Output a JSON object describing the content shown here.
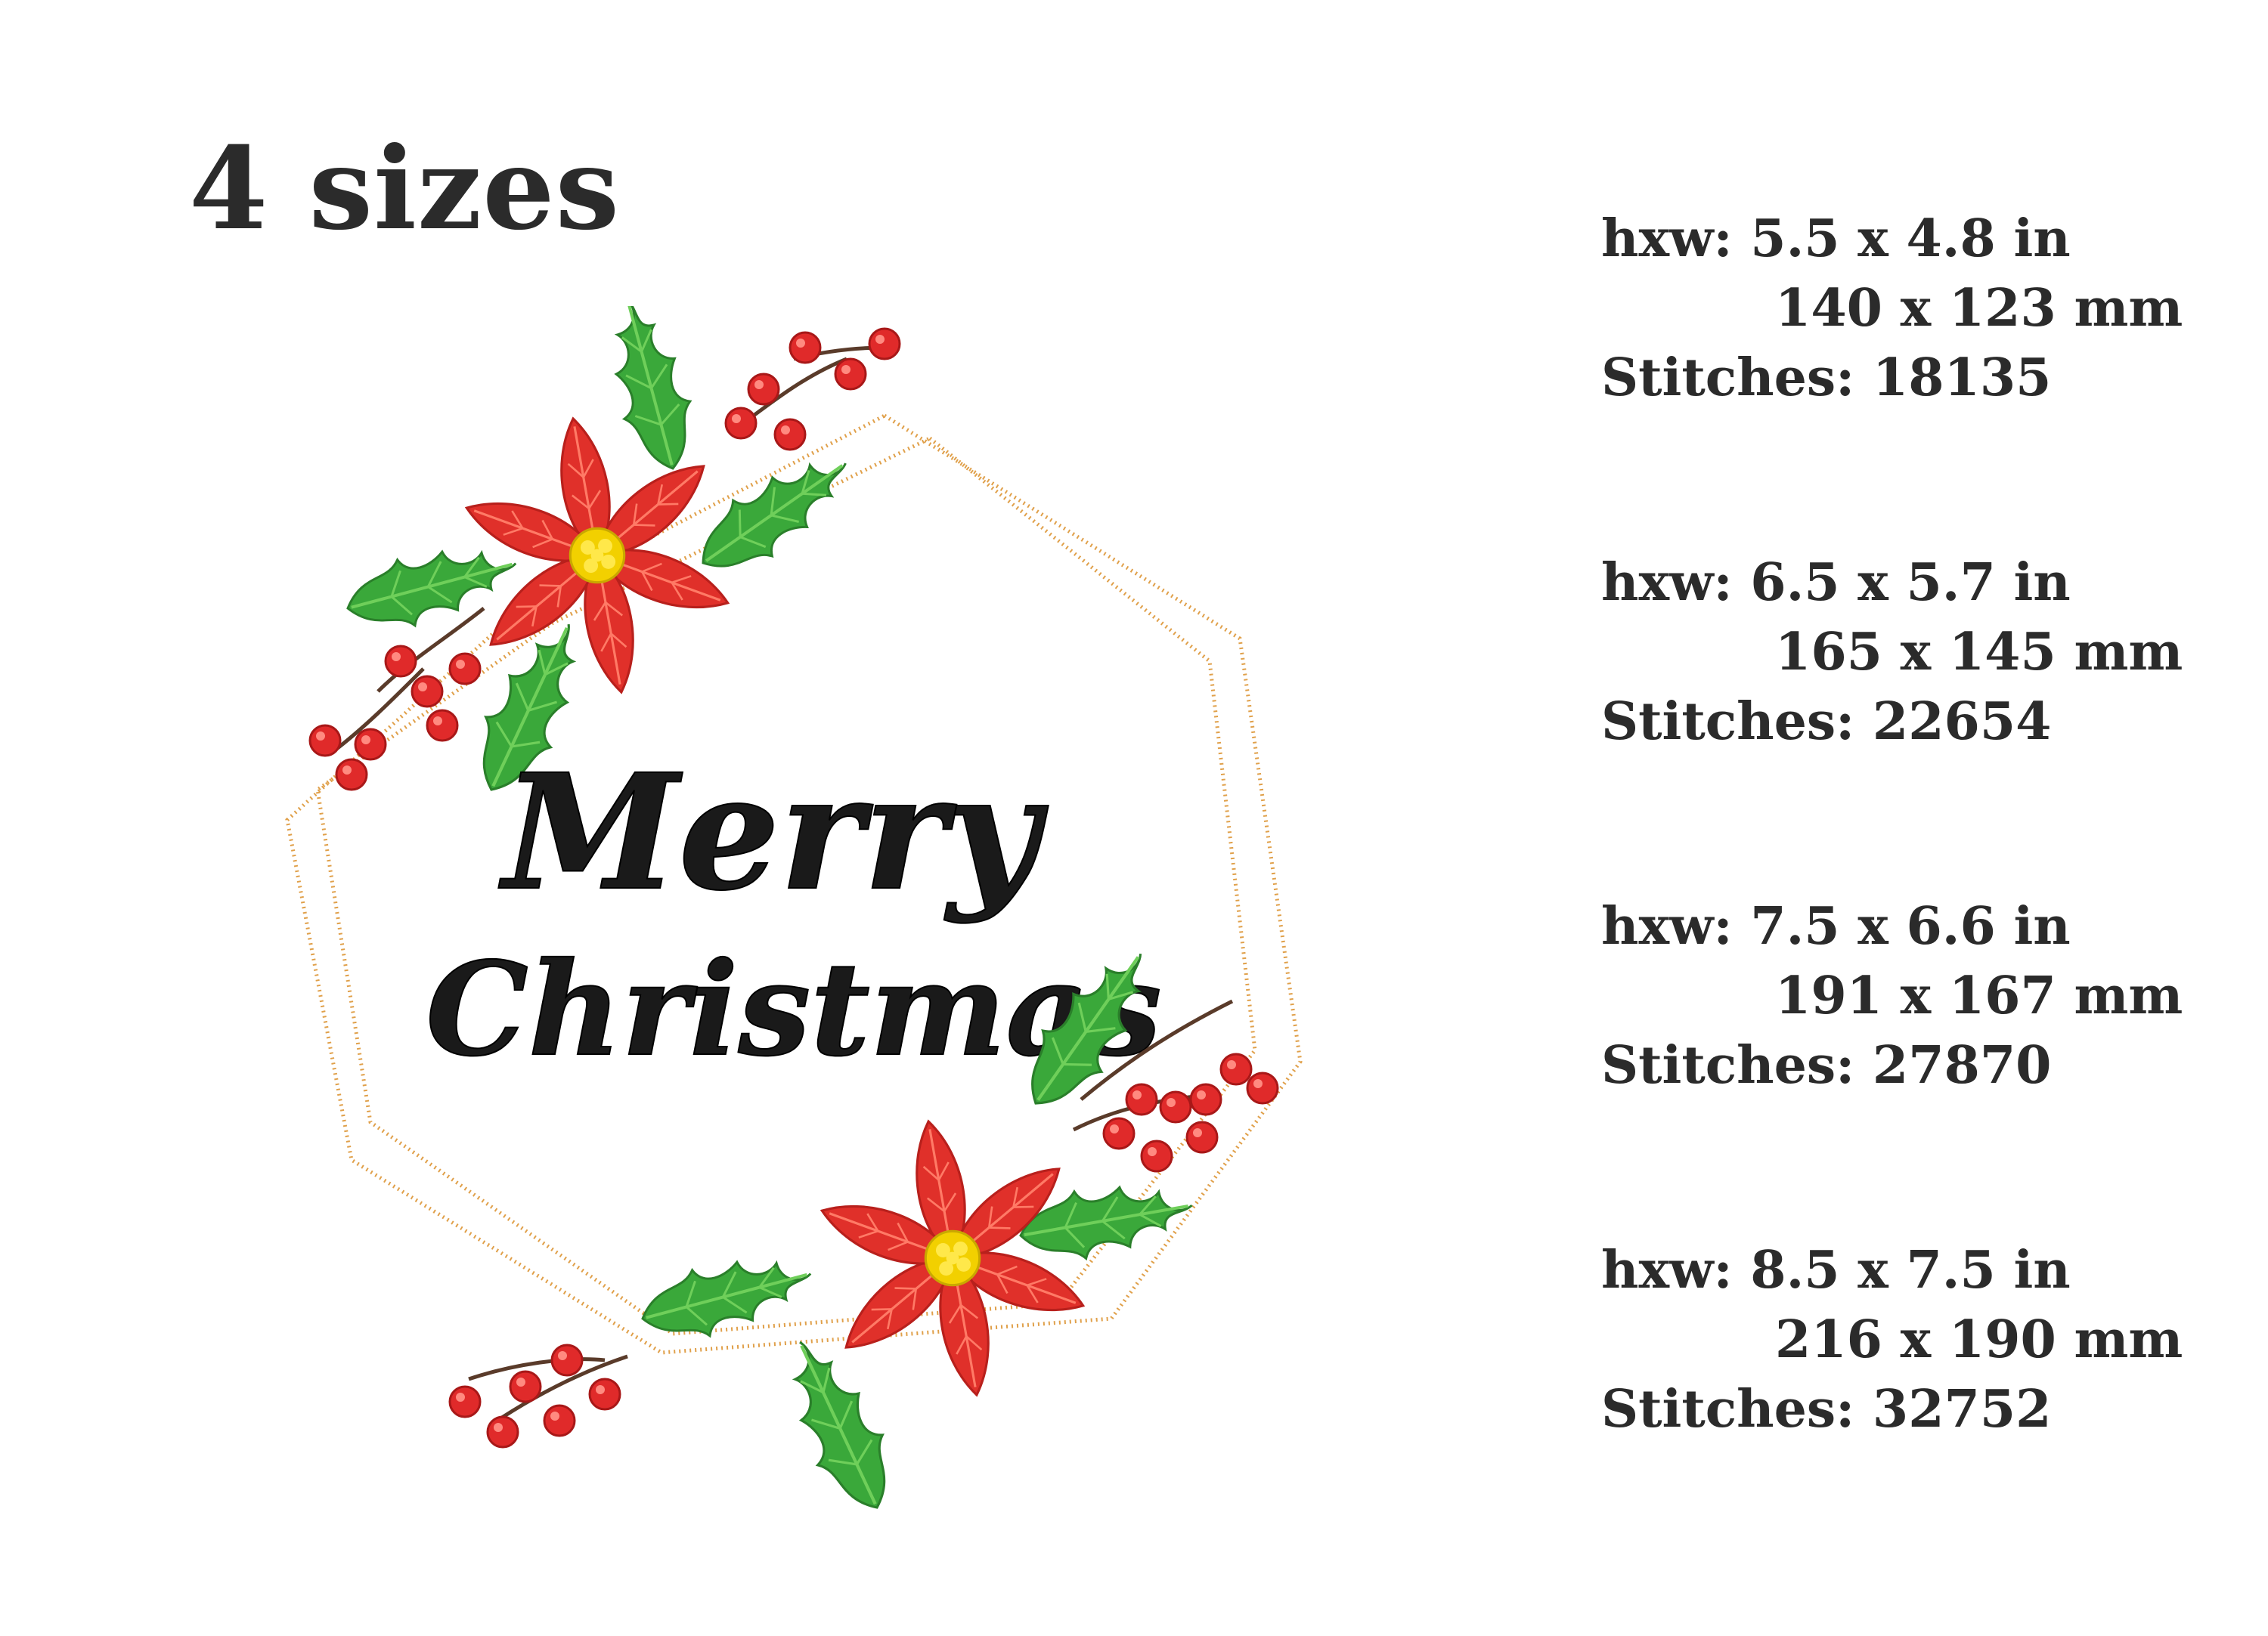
{
  "heading": "4 sizes",
  "artwork": {
    "text_line1": "Merry",
    "text_line2": "Christmas",
    "colors": {
      "frame_gold": "#e0a04a",
      "poinsettia_red": "#e0302a",
      "leaf_green": "#3aa83a",
      "flower_center": "#f2d000",
      "berry_red": "#e02a2a",
      "lettering_black": "#1a1a1a"
    }
  },
  "sizes": [
    {
      "hxw": "hxw:  5.5 x 4.8 in",
      "mm": "140 x 123 mm",
      "stitches": "Stitches: 18135"
    },
    {
      "hxw": "hxw:  6.5 x 5.7 in",
      "mm": "165 x 145 mm",
      "stitches": "Stitches: 22654"
    },
    {
      "hxw": "hxw:  7.5 x 6.6 in",
      "mm": "191 x 167 mm",
      "stitches": "Stitches: 27870"
    },
    {
      "hxw": "hxw:  8.5 x 7.5 in",
      "mm": "216 x 190 mm",
      "stitches": "Stitches: 32752"
    }
  ]
}
